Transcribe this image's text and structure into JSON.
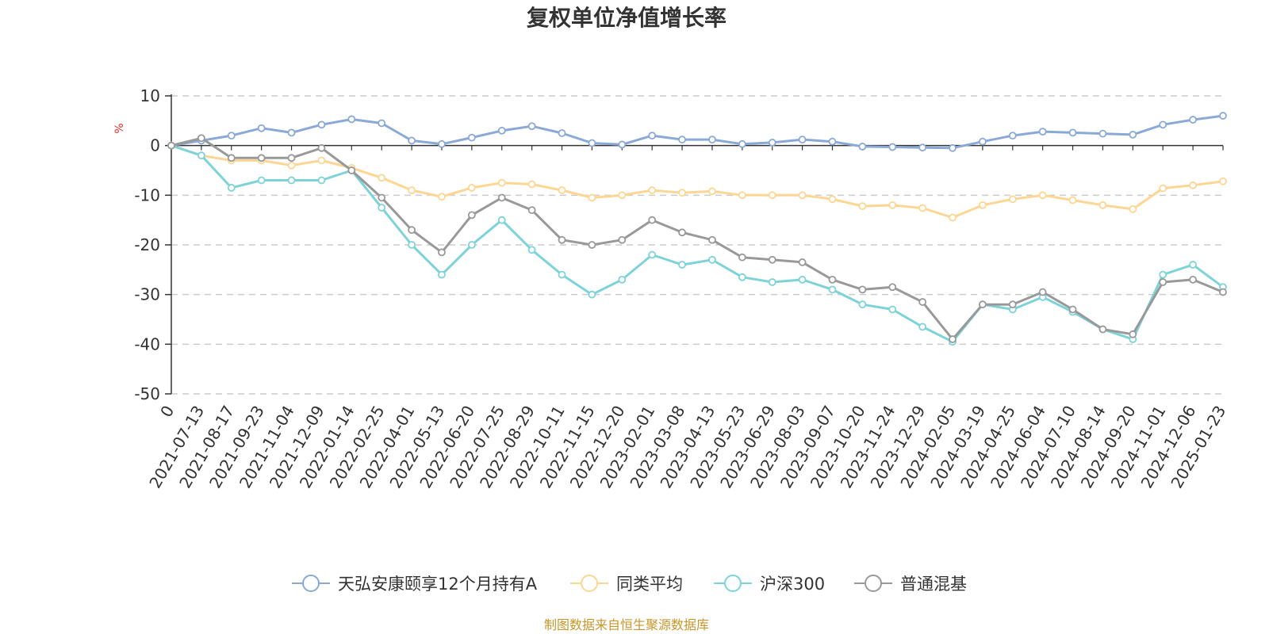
{
  "chart_data": {
    "type": "line",
    "title": "复权单位净值增长率",
    "ylabel": "%",
    "xlabel": "",
    "ylim": [
      -50,
      10
    ],
    "yticks": [
      "10",
      "0",
      "-10",
      "-20",
      "-30",
      "-40",
      "-50"
    ],
    "ytick_values": [
      10,
      0,
      -10,
      -20,
      -30,
      -40,
      -50
    ],
    "grid": true,
    "legend_position": "bottom",
    "categories": [
      "0",
      "2021-07-13",
      "2021-08-17",
      "2021-09-23",
      "2021-11-04",
      "2021-12-09",
      "2022-01-14",
      "2022-02-25",
      "2022-04-01",
      "2022-05-13",
      "2022-06-20",
      "2022-07-25",
      "2022-08-29",
      "2022-10-11",
      "2022-11-15",
      "2022-12-20",
      "2023-02-01",
      "2023-03-08",
      "2023-04-13",
      "2023-05-23",
      "2023-06-29",
      "2023-08-03",
      "2023-09-07",
      "2023-10-20",
      "2023-11-24",
      "2023-12-29",
      "2024-02-05",
      "2024-03-19",
      "2024-04-25",
      "2024-06-04",
      "2024-07-10",
      "2024-08-14",
      "2024-09-20",
      "2024-11-01",
      "2024-12-06",
      "2025-01-23"
    ],
    "series": [
      {
        "name": "天弘安康颐享12个月持有A",
        "color": "#8aa9d6",
        "values": [
          0,
          1.0,
          2.0,
          3.5,
          2.6,
          4.2,
          5.3,
          4.5,
          1.0,
          0.3,
          1.6,
          3.0,
          3.9,
          2.5,
          0.5,
          0.2,
          2.0,
          1.2,
          1.2,
          0.3,
          0.6,
          1.2,
          0.8,
          -0.2,
          -0.3,
          -0.4,
          -0.5,
          0.8,
          2.0,
          2.8,
          2.6,
          2.4,
          2.2,
          4.2,
          5.2,
          6.0
        ]
      },
      {
        "name": "同类平均",
        "color": "#fdd693",
        "values": [
          0,
          -2.0,
          -3.0,
          -3.0,
          -4.0,
          -3.0,
          -4.5,
          -6.5,
          -9.0,
          -10.3,
          -8.5,
          -7.5,
          -7.8,
          -9.0,
          -10.5,
          -10.0,
          -9.0,
          -9.5,
          -9.2,
          -10.0,
          -10.0,
          -10.0,
          -10.8,
          -12.2,
          -12.0,
          -12.6,
          -14.5,
          -12.0,
          -10.8,
          -10.0,
          -11.0,
          -12.0,
          -12.8,
          -8.6,
          -8.0,
          -7.2
        ]
      },
      {
        "name": "沪深300",
        "color": "#7dd3d8",
        "values": [
          0,
          -2.0,
          -8.5,
          -7.0,
          -7.0,
          -7.0,
          -5.0,
          -12.5,
          -20.0,
          -26.0,
          -20.0,
          -15.0,
          -21.0,
          -26.0,
          -30.0,
          -27.0,
          -22.0,
          -24.0,
          -23.0,
          -26.5,
          -27.5,
          -27.0,
          -29.0,
          -32.0,
          -33.0,
          -36.5,
          -39.5,
          -32.0,
          -33.0,
          -30.5,
          -33.5,
          -37.0,
          -39.0,
          -26.0,
          -24.0,
          -28.5
        ]
      },
      {
        "name": "普通混基",
        "color": "#999999",
        "values": [
          0,
          1.5,
          -2.5,
          -2.5,
          -2.5,
          -0.5,
          -5.0,
          -10.5,
          -17.0,
          -21.5,
          -14.0,
          -10.5,
          -13.0,
          -19.0,
          -20.0,
          -19.0,
          -15.0,
          -17.5,
          -19.0,
          -22.5,
          -23.0,
          -23.5,
          -27.0,
          -29.0,
          -28.5,
          -31.5,
          -39.0,
          -32.0,
          -32.0,
          -29.5,
          -33.0,
          -37.0,
          -38.0,
          -27.5,
          -27.0,
          -29.5
        ]
      }
    ],
    "source": "制图数据来自恒生聚源数据库"
  }
}
